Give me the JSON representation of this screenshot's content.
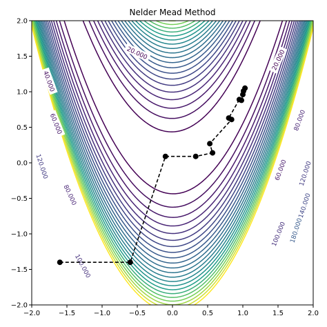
{
  "chart_data": {
    "type": "contour",
    "title": "Nelder Mead Method",
    "xlabel": "",
    "ylabel": "",
    "xlim": [
      -2.0,
      2.0
    ],
    "ylim": [
      -2.0,
      2.0
    ],
    "function": "rosenbrock",
    "x_ticks": [
      -2.0,
      -1.5,
      -1.0,
      -0.5,
      0.0,
      0.5,
      1.0,
      1.5,
      2.0
    ],
    "y_ticks": [
      -2.0,
      -1.5,
      -1.0,
      -0.5,
      0.0,
      0.5,
      1.0,
      1.5,
      2.0
    ],
    "x_tick_labels": [
      "−2.0",
      "−1.5",
      "−1.0",
      "−0.5",
      "0.0",
      "0.5",
      "1.0",
      "1.5",
      "2.0"
    ],
    "y_tick_labels": [
      "−2.0",
      "−1.5",
      "−1.0",
      "−0.5",
      "0.0",
      "0.5",
      "1.0",
      "1.5",
      "2.0"
    ],
    "contour_levels": [
      20,
      40,
      60,
      80,
      100,
      120,
      140,
      160,
      180,
      200,
      220,
      240,
      260,
      280,
      300,
      320,
      340,
      360,
      380,
      400,
      420,
      440
    ],
    "contour_labels": [
      {
        "text": "20.000",
        "x": -0.5,
        "y": 1.55,
        "level": 20,
        "angle": 25
      },
      {
        "text": "20.000",
        "x": 1.5,
        "y": 1.45,
        "level": 20,
        "angle": -65
      },
      {
        "text": "40.000",
        "x": -1.75,
        "y": 1.15,
        "level": 40,
        "angle": 70
      },
      {
        "text": "60.000",
        "x": -1.65,
        "y": 0.55,
        "level": 60,
        "angle": 68
      },
      {
        "text": "80.000",
        "x": 1.8,
        "y": 0.6,
        "level": 80,
        "angle": -70
      },
      {
        "text": "120.000",
        "x": -1.85,
        "y": -0.05,
        "level": 120,
        "angle": 72
      },
      {
        "text": "80.000",
        "x": -1.45,
        "y": -0.45,
        "level": 80,
        "angle": 65
      },
      {
        "text": "60.000",
        "x": 1.53,
        "y": -0.1,
        "level": 60,
        "angle": -70
      },
      {
        "text": "120.000",
        "x": 1.88,
        "y": -0.15,
        "level": 120,
        "angle": -72
      },
      {
        "text": "140.000",
        "x": 1.87,
        "y": -0.6,
        "level": 140,
        "angle": -72
      },
      {
        "text": "100.000",
        "x": -1.27,
        "y": -1.45,
        "level": 100,
        "angle": 62
      },
      {
        "text": "100.000",
        "x": 1.5,
        "y": -1.0,
        "level": 100,
        "angle": -68
      },
      {
        "text": "180.000",
        "x": 1.75,
        "y": -0.95,
        "level": 180,
        "angle": -72
      }
    ],
    "path": {
      "style": "dashed",
      "color": "#000000",
      "x": [
        -1.6,
        -0.6,
        -0.1,
        0.33,
        0.57,
        0.53,
        0.84,
        0.8,
        0.95,
        0.98,
        1.0,
        1.01,
        1.03
      ],
      "y": [
        -1.4,
        -1.4,
        0.09,
        0.09,
        0.14,
        0.27,
        0.61,
        0.63,
        0.89,
        0.88,
        0.96,
        1.01,
        1.05
      ]
    }
  }
}
